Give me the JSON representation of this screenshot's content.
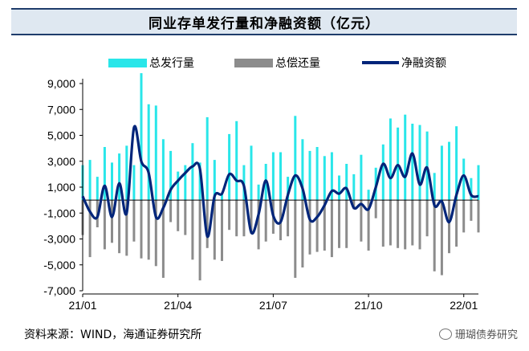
{
  "title": "同业存单发行量和净融资额（亿元）",
  "source": "资料来源：WIND，海通证券研究所",
  "watermark": "珊瑚债券研究",
  "colors": {
    "issuance": "#29e6e9",
    "repayment": "#8c8c8c",
    "net": "#00257a"
  },
  "chart_data": {
    "type": "bar+line",
    "title": "同业存单发行量和净融资额（亿元）",
    "ylim": [
      -7000,
      9000
    ],
    "yticks": [
      9000,
      7000,
      5000,
      3000,
      1000,
      -1000,
      -3000,
      -5000,
      -7000
    ],
    "ytick_labels": [
      "9,000",
      "7,000",
      "5,000",
      "3,000",
      "1,000",
      "-1,000",
      "-3,000",
      "-5,000",
      "-7,000"
    ],
    "xtick_labels": [
      "21/01",
      "21/04",
      "21/07",
      "21/10",
      "22/01"
    ],
    "xtick_index": [
      0,
      13,
      26,
      39,
      52
    ],
    "legend": [
      "总发行量",
      "总偿还量",
      "净融资额"
    ],
    "series": [
      {
        "name": "总发行量",
        "kind": "bar",
        "values": [
          2700,
          3100,
          1800,
          4100,
          2900,
          3600,
          4200,
          2700,
          9800,
          7400,
          7300,
          4700,
          3800,
          2200,
          2700,
          4400,
          2900,
          6400,
          3100,
          500,
          5100,
          6100,
          2700,
          4200,
          1200,
          2800,
          3700,
          3700,
          1800,
          6500,
          4700,
          3800,
          4100,
          3400,
          3700,
          1900,
          2800,
          2000,
          3500,
          800,
          2500,
          4300,
          6300,
          5600,
          6600,
          5900,
          5800,
          5300,
          2100,
          4200,
          4500,
          5700,
          3200,
          1700,
          2700
        ]
      },
      {
        "name": "总偿还量",
        "kind": "bar",
        "values": [
          -2700,
          -4400,
          -2100,
          -3800,
          -3300,
          -4100,
          -4300,
          -3200,
          -4500,
          -4600,
          -5100,
          -6000,
          -1700,
          -2400,
          -2700,
          -4600,
          -6200,
          -3700,
          -4600,
          -4700,
          -2300,
          -2800,
          -2800,
          -2600,
          -3800,
          -3200,
          -2600,
          -3100,
          -2800,
          -6000,
          -5200,
          -4200,
          -4000,
          -3900,
          -4400,
          -3700,
          -3700,
          -700,
          -3200,
          -3900,
          -1400,
          -3600,
          -3500,
          -3700,
          -3800,
          -3500,
          -3800,
          -2800,
          -5500,
          -5800,
          -4100,
          -3600,
          -2500,
          -1600,
          -2500
        ]
      },
      {
        "name": "净融资额",
        "kind": "line",
        "values": [
          300,
          -900,
          -1300,
          1100,
          -1300,
          1300,
          -1000,
          5600,
          3000,
          2100,
          -1300,
          -600,
          800,
          1500,
          2100,
          2600,
          2400,
          -2800,
          300,
          500,
          2000,
          1500,
          1100,
          -2500,
          -1100,
          1500,
          -1200,
          -1700,
          400,
          1900,
          900,
          -1500,
          -1300,
          -400,
          700,
          500,
          900,
          -600,
          -300,
          -700,
          1000,
          2800,
          1700,
          2700,
          1800,
          3600,
          1200,
          2500,
          -400,
          -100,
          -1700,
          400,
          1900,
          400,
          300
        ]
      }
    ]
  }
}
